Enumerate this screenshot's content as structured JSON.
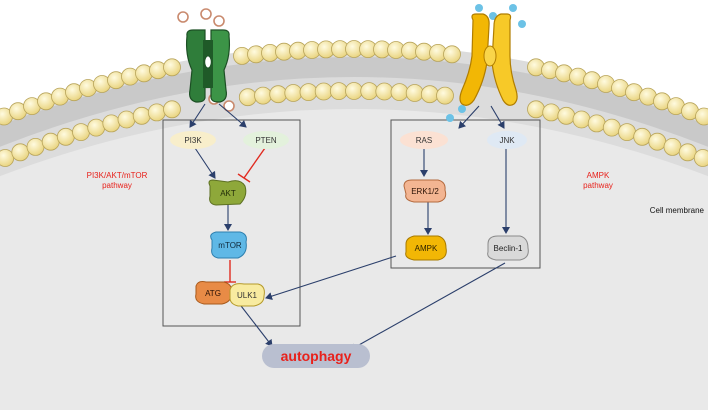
{
  "labels": {
    "pi3k": "PI3K",
    "pten": "PTEN",
    "akt": "AKT",
    "mtor": "mTOR",
    "atg": "ATG",
    "ulk1": "ULK1",
    "ras": "RAS",
    "jnk": "JNK",
    "erk": "ERK1/2",
    "ampk": "AMPK",
    "beclin": "Beclin-1",
    "autophagy": "autophagy",
    "pathway_left_line1": "PI3K/AKT/mTOR",
    "pathway_left_line2": "pathway",
    "pathway_right_line1": "AMPK",
    "pathway_right_line2": "pathway",
    "cell_membrane": "Cell membrane"
  },
  "colors": {
    "accent_red": "#e8211b",
    "arrow_navy": "#2b3f6b",
    "inhibit_red": "#e02b20",
    "lipid_head": "#f7e9a8",
    "cytoplasm": "#e9e9e9",
    "box_border": "#555555",
    "receptor_left": "#2f7d3a",
    "receptor_right": "#f2b705"
  }
}
